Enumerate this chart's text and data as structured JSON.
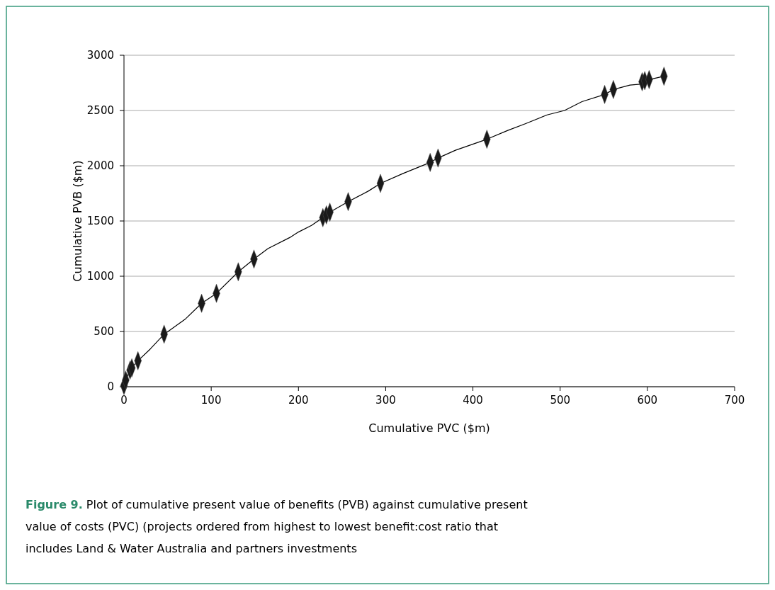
{
  "chart_data": {
    "type": "scatter",
    "xlabel": "Cumulative PVC ($m)",
    "ylabel": "Cumulative PVB ($m)",
    "annotations": [
      "Figure 9.",
      "Plot of cumulative present value of benefits (PVB) against cumulative present value of costs (PVC) (projects ordered from highest to lowest benefit:cost ratio that includes Land & Water Australia and partners investments"
    ],
    "xlim": [
      0,
      700
    ],
    "xticks": [
      0,
      100,
      200,
      300,
      400,
      500,
      600,
      700
    ],
    "ylim": [
      0,
      3000
    ],
    "yticks": [
      0,
      500,
      1000,
      1500,
      2000,
      2500,
      3000
    ],
    "grid": "y",
    "series": [
      {
        "type": "line",
        "color": "#000000",
        "marker": "none",
        "x": [
          0,
          2,
          7,
          9,
          16,
          30,
          46,
          70,
          89,
          106,
          131,
          149,
          165,
          190,
          200,
          215,
          228,
          232,
          236,
          257,
          280,
          294,
          320,
          351,
          360,
          380,
          416,
          440,
          460,
          485,
          505,
          525,
          551,
          561,
          580,
          594,
          597,
          602,
          619
        ],
        "values": [
          10,
          60,
          150,
          170,
          235,
          340,
          475,
          610,
          755,
          845,
          1040,
          1155,
          1250,
          1350,
          1400,
          1460,
          1530,
          1555,
          1580,
          1675,
          1770,
          1840,
          1930,
          2030,
          2070,
          2140,
          2240,
          2320,
          2380,
          2460,
          2500,
          2580,
          2645,
          2690,
          2730,
          2740,
          2760,
          2780,
          2810
        ]
      },
      {
        "color": "#1a1a1a",
        "marker": "diamond",
        "x": [
          0,
          2,
          7,
          9,
          16,
          46,
          89,
          106,
          131,
          149,
          228,
          232,
          236,
          257,
          294,
          351,
          360,
          416,
          551,
          561,
          594,
          597,
          602,
          619
        ],
        "values": [
          10,
          60,
          150,
          170,
          235,
          475,
          755,
          845,
          1040,
          1155,
          1530,
          1555,
          1580,
          1675,
          1840,
          2030,
          2070,
          2240,
          2645,
          2690,
          2760,
          2770,
          2780,
          2810
        ]
      }
    ]
  }
}
